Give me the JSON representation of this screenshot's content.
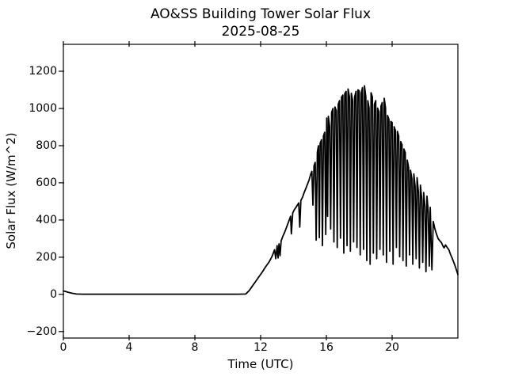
{
  "chart_data": {
    "type": "line",
    "title": "AO&SS Building Tower Solar Flux",
    "subtitle": "2025-08-25",
    "xlabel": "Time (UTC)",
    "ylabel": "Solar Flux (W/m^2)",
    "xlim": [
      0,
      24
    ],
    "ylim": [
      -235,
      1345
    ],
    "xticks": [
      0,
      4,
      8,
      12,
      16,
      20
    ],
    "yticks": [
      -200,
      0,
      200,
      400,
      600,
      800,
      1000,
      1200
    ],
    "grid": false,
    "legend": null,
    "line_color": "#000000",
    "line_width": 1.8,
    "axis_color": "#000000",
    "background_color": "#ffffff",
    "series": [
      {
        "name": "solar_flux",
        "points": [
          [
            0,
            18
          ],
          [
            0.15,
            15
          ],
          [
            0.3,
            11
          ],
          [
            0.5,
            7
          ],
          [
            0.65,
            4
          ],
          [
            0.8,
            2
          ],
          [
            1.2,
            1
          ],
          [
            2,
            1
          ],
          [
            3,
            1
          ],
          [
            4,
            1
          ],
          [
            5,
            1
          ],
          [
            6,
            1
          ],
          [
            7,
            1
          ],
          [
            8,
            1
          ],
          [
            9,
            1
          ],
          [
            10,
            1
          ],
          [
            10.6,
            1
          ],
          [
            11.1,
            2
          ],
          [
            11.3,
            20
          ],
          [
            11.5,
            45
          ],
          [
            11.7,
            70
          ],
          [
            11.9,
            95
          ],
          [
            12.1,
            120
          ],
          [
            12.3,
            148
          ],
          [
            12.5,
            172
          ],
          [
            12.7,
            205
          ],
          [
            12.85,
            240
          ],
          [
            12.92,
            192
          ],
          [
            13.0,
            262
          ],
          [
            13.06,
            196
          ],
          [
            13.12,
            272
          ],
          [
            13.18,
            208
          ],
          [
            13.25,
            288
          ],
          [
            13.35,
            312
          ],
          [
            13.45,
            332
          ],
          [
            13.55,
            355
          ],
          [
            13.65,
            378
          ],
          [
            13.75,
            402
          ],
          [
            13.82,
            420
          ],
          [
            13.87,
            325
          ],
          [
            13.95,
            438
          ],
          [
            14.05,
            455
          ],
          [
            14.15,
            468
          ],
          [
            14.25,
            482
          ],
          [
            14.32,
            492
          ],
          [
            14.38,
            362
          ],
          [
            14.45,
            505
          ],
          [
            14.55,
            522
          ],
          [
            14.65,
            548
          ],
          [
            14.75,
            570
          ],
          [
            14.85,
            592
          ],
          [
            14.95,
            615
          ],
          [
            15.05,
            648
          ],
          [
            15.12,
            662
          ],
          [
            15.18,
            480
          ],
          [
            15.25,
            692
          ],
          [
            15.32,
            710
          ],
          [
            15.38,
            292
          ],
          [
            15.45,
            765
          ],
          [
            15.52,
            800
          ],
          [
            15.57,
            305
          ],
          [
            15.62,
            812
          ],
          [
            15.7,
            832
          ],
          [
            15.76,
            262
          ],
          [
            15.82,
            852
          ],
          [
            15.9,
            872
          ],
          [
            15.96,
            322
          ],
          [
            16.02,
            948
          ],
          [
            16.07,
            420
          ],
          [
            16.12,
            958
          ],
          [
            16.2,
            902
          ],
          [
            16.26,
            352
          ],
          [
            16.32,
            978
          ],
          [
            16.4,
            1000
          ],
          [
            16.46,
            282
          ],
          [
            16.52,
            1008
          ],
          [
            16.6,
            988
          ],
          [
            16.66,
            252
          ],
          [
            16.72,
            1022
          ],
          [
            16.8,
            1042
          ],
          [
            16.86,
            302
          ],
          [
            16.92,
            1060
          ],
          [
            17.0,
            1072
          ],
          [
            17.06,
            222
          ],
          [
            17.12,
            1080
          ],
          [
            17.2,
            1092
          ],
          [
            17.26,
            262
          ],
          [
            17.32,
            1105
          ],
          [
            17.4,
            1062
          ],
          [
            17.46,
            232
          ],
          [
            17.52,
            1082
          ],
          [
            17.6,
            1042
          ],
          [
            17.66,
            282
          ],
          [
            17.72,
            1062
          ],
          [
            17.8,
            1092
          ],
          [
            17.86,
            252
          ],
          [
            17.92,
            1100
          ],
          [
            18.0,
            1095
          ],
          [
            18.06,
            212
          ],
          [
            18.12,
            1082
          ],
          [
            18.2,
            1112
          ],
          [
            18.26,
            242
          ],
          [
            18.32,
            1122
          ],
          [
            18.4,
            1062
          ],
          [
            18.46,
            182
          ],
          [
            18.52,
            1042
          ],
          [
            18.6,
            1002
          ],
          [
            18.66,
            162
          ],
          [
            18.72,
            1085
          ],
          [
            18.8,
            1062
          ],
          [
            18.86,
            222
          ],
          [
            18.92,
            1022
          ],
          [
            19.0,
            1042
          ],
          [
            19.06,
            192
          ],
          [
            19.12,
            1002
          ],
          [
            19.2,
            982
          ],
          [
            19.26,
            242
          ],
          [
            19.32,
            1012
          ],
          [
            19.4,
            1032
          ],
          [
            19.46,
            212
          ],
          [
            19.52,
            1055
          ],
          [
            19.6,
            1002
          ],
          [
            19.66,
            172
          ],
          [
            19.72,
            962
          ],
          [
            19.8,
            942
          ],
          [
            19.86,
            232
          ],
          [
            19.92,
            930
          ],
          [
            20.0,
            925
          ],
          [
            20.06,
            162
          ],
          [
            20.12,
            902
          ],
          [
            20.2,
            882
          ],
          [
            20.26,
            252
          ],
          [
            20.32,
            877
          ],
          [
            20.4,
            852
          ],
          [
            20.46,
            202
          ],
          [
            20.52,
            822
          ],
          [
            20.6,
            805
          ],
          [
            20.66,
            182
          ],
          [
            20.72,
            782
          ],
          [
            20.8,
            762
          ],
          [
            20.86,
            152
          ],
          [
            20.92,
            722
          ],
          [
            21.0,
            682
          ],
          [
            21.06,
            212
          ],
          [
            21.12,
            668
          ],
          [
            21.2,
            622
          ],
          [
            21.26,
            162
          ],
          [
            21.32,
            648
          ],
          [
            21.4,
            582
          ],
          [
            21.46,
            192
          ],
          [
            21.52,
            628
          ],
          [
            21.6,
            548
          ],
          [
            21.66,
            142
          ],
          [
            21.72,
            588
          ],
          [
            21.8,
            512
          ],
          [
            21.86,
            172
          ],
          [
            21.92,
            548
          ],
          [
            22.0,
            472
          ],
          [
            22.06,
            122
          ],
          [
            22.12,
            528
          ],
          [
            22.2,
            442
          ],
          [
            22.26,
            152
          ],
          [
            22.32,
            468
          ],
          [
            22.42,
            132
          ],
          [
            22.5,
            392
          ],
          [
            22.6,
            352
          ],
          [
            22.7,
            324
          ],
          [
            22.8,
            300
          ],
          [
            22.9,
            288
          ],
          [
            23.0,
            278
          ],
          [
            23.08,
            262
          ],
          [
            23.16,
            250
          ],
          [
            23.25,
            266
          ],
          [
            23.35,
            252
          ],
          [
            23.45,
            240
          ],
          [
            23.55,
            215
          ],
          [
            23.65,
            195
          ],
          [
            23.75,
            172
          ],
          [
            23.85,
            148
          ],
          [
            23.95,
            120
          ],
          [
            24.0,
            106
          ]
        ]
      }
    ]
  }
}
